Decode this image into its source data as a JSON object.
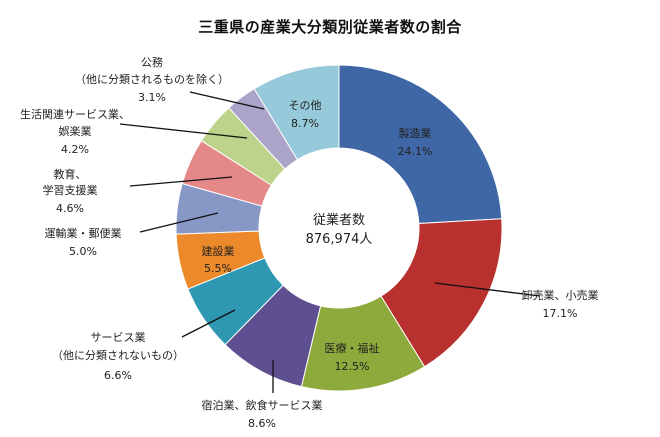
{
  "chart_data": {
    "type": "pie",
    "title": "三重県の産業大分類別従業者数の割合",
    "center_label": "従業者数",
    "center_value": "876,974人",
    "slices": [
      {
        "name": "製造業",
        "value": 24.1,
        "value_label": "24.1%",
        "color": "#3F67A6"
      },
      {
        "name": "卸売業、小売業",
        "value": 17.1,
        "value_label": "17.1%",
        "color": "#B8312F"
      },
      {
        "name": "医療・福祉",
        "value": 12.5,
        "value_label": "12.5%",
        "color": "#8EAA3D"
      },
      {
        "name": "宿泊業、飲食サービス業",
        "value": 8.6,
        "value_label": "8.6%",
        "color": "#5E4F90"
      },
      {
        "name": "サービス業（他に分類されないもの）",
        "value": 6.6,
        "value_label": "6.6%",
        "color": "#2E97B2"
      },
      {
        "name": "建設業",
        "value": 5.5,
        "value_label": "5.5%",
        "color": "#EC8A2B"
      },
      {
        "name": "運輸業・郵便業",
        "value": 5.0,
        "value_label": "5.0%",
        "color": "#8797C6"
      },
      {
        "name": "教育、学習支援業",
        "value": 4.6,
        "value_label": "4.6%",
        "color": "#E48988"
      },
      {
        "name": "生活関連サービス業、娯楽業",
        "value": 4.2,
        "value_label": "4.2%",
        "color": "#BDD38B"
      },
      {
        "name": "公務（他に分類されるものを除く）",
        "value": 3.1,
        "value_label": "3.1%",
        "color": "#ACA3C8"
      },
      {
        "name": "その他",
        "value": 8.7,
        "value_label": "8.7%",
        "color": "#96C9D9"
      }
    ]
  }
}
